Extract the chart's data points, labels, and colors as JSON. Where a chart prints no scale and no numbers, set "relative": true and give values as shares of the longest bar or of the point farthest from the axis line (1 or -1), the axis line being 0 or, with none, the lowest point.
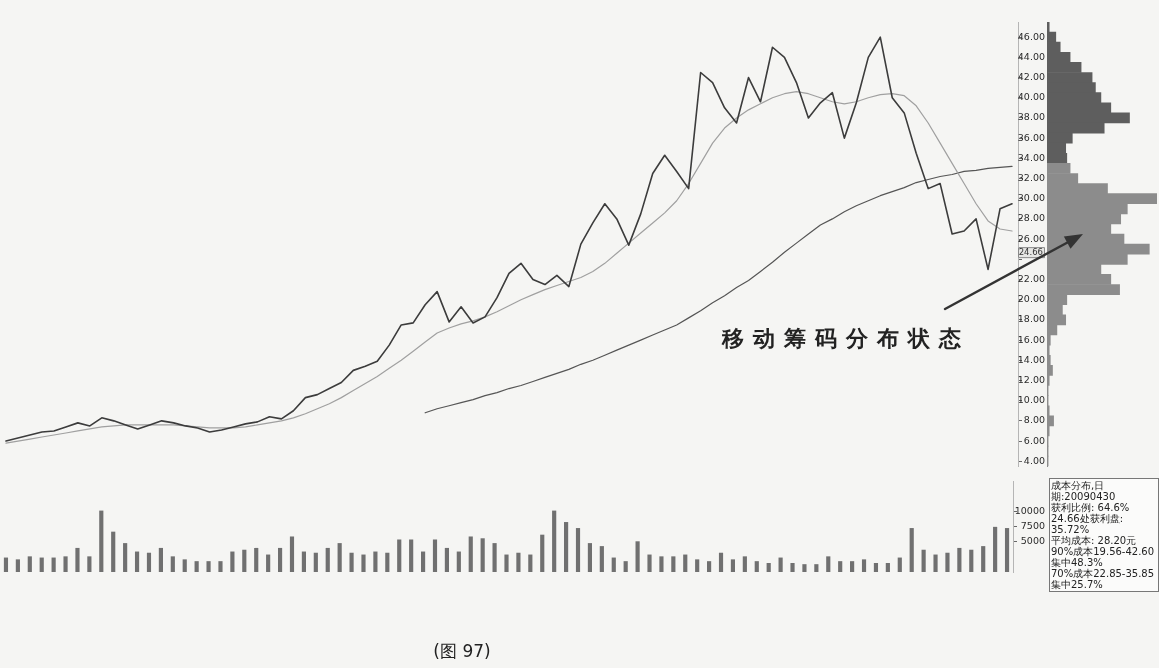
{
  "chart_data": [
    {
      "type": "line",
      "categories": [
        null,
        null,
        null,
        null,
        null,
        null,
        null,
        null,
        null,
        null,
        null,
        null,
        null,
        null,
        null,
        null,
        null,
        null,
        null,
        null,
        null,
        null,
        null,
        null,
        null,
        null,
        null,
        null,
        null,
        null,
        null,
        null,
        null,
        null,
        null,
        null,
        null,
        null,
        null,
        null,
        null,
        null,
        null,
        null,
        null,
        null,
        null,
        null,
        null,
        null,
        null,
        null,
        null,
        null,
        null,
        null,
        null,
        null,
        null,
        null,
        null,
        null,
        null,
        null,
        null,
        null,
        null,
        null,
        null,
        null,
        null,
        null,
        null,
        null,
        null,
        null,
        null,
        null,
        null,
        null,
        null,
        null,
        null,
        null,
        null
      ],
      "series": [
        {
          "color": "#3c3c3c",
          "values": [
            6.0,
            6.3,
            6.6,
            6.9,
            7.0,
            7.4,
            7.8,
            7.5,
            8.3,
            8.0,
            7.6,
            7.2,
            7.6,
            8.0,
            7.8,
            7.5,
            7.3,
            6.9,
            7.1,
            7.4,
            7.7,
            7.9,
            8.4,
            8.2,
            9.0,
            10.3,
            10.6,
            11.2,
            11.8,
            13.0,
            13.4,
            13.9,
            15.5,
            17.5,
            17.7,
            19.5,
            20.8,
            17.8,
            19.3,
            17.7,
            18.3,
            20.2,
            22.6,
            23.6,
            22.0,
            21.5,
            22.4,
            21.3,
            25.5,
            27.6,
            29.5,
            28.0,
            25.4,
            28.5,
            32.5,
            34.3,
            32.7,
            31.0,
            42.5,
            41.5,
            39.0,
            37.5,
            42.0,
            39.6,
            45.0,
            44.0,
            41.5,
            38.0,
            39.5,
            40.5,
            36.0,
            39.5,
            44.0,
            46.0,
            40.0,
            38.5,
            34.5,
            31.0,
            31.5,
            26.5,
            26.8,
            28.0,
            23.0,
            29.0,
            29.5
          ]
        },
        {
          "color": "#a0a0a0",
          "values": [
            5.8,
            6.0,
            6.2,
            6.4,
            6.6,
            6.8,
            7.0,
            7.2,
            7.4,
            7.5,
            7.6,
            7.6,
            7.6,
            7.6,
            7.6,
            7.5,
            7.4,
            7.3,
            7.3,
            7.3,
            7.4,
            7.6,
            7.8,
            8.0,
            8.3,
            8.7,
            9.2,
            9.7,
            10.3,
            11.0,
            11.7,
            12.4,
            13.2,
            14.0,
            14.9,
            15.8,
            16.7,
            17.2,
            17.6,
            17.9,
            18.3,
            18.8,
            19.4,
            20.0,
            20.5,
            21.0,
            21.4,
            21.8,
            22.2,
            22.8,
            23.6,
            24.6,
            25.6,
            26.6,
            27.6,
            28.6,
            29.8,
            31.5,
            33.5,
            35.5,
            37.0,
            38.0,
            38.8,
            39.4,
            40.0,
            40.4,
            40.6,
            40.4,
            40.0,
            39.6,
            39.4,
            39.6,
            40.0,
            40.3,
            40.4,
            40.2,
            39.2,
            37.5,
            35.5,
            33.5,
            31.5,
            29.5,
            27.8,
            27.0,
            26.8
          ]
        },
        {
          "color": "#555555",
          "values": [
            null,
            null,
            null,
            null,
            null,
            null,
            null,
            null,
            null,
            null,
            null,
            null,
            null,
            null,
            null,
            null,
            null,
            null,
            null,
            null,
            null,
            null,
            null,
            null,
            null,
            null,
            null,
            null,
            null,
            null,
            null,
            null,
            null,
            null,
            null,
            8.8,
            9.2,
            9.5,
            9.8,
            10.1,
            10.5,
            10.8,
            11.2,
            11.5,
            11.9,
            12.3,
            12.7,
            13.1,
            13.6,
            14.0,
            14.5,
            15.0,
            15.5,
            16.0,
            16.5,
            17.0,
            17.5,
            18.2,
            18.9,
            19.7,
            20.4,
            21.2,
            21.9,
            22.8,
            23.7,
            24.7,
            25.6,
            26.5,
            27.4,
            28.0,
            28.7,
            29.3,
            29.8,
            30.3,
            30.7,
            31.1,
            31.6,
            31.9,
            32.2,
            32.4,
            32.7,
            32.8,
            33.0,
            33.1,
            33.2
          ]
        }
      ],
      "ylim": [
        3.5,
        47.5
      ],
      "yticks": [
        {
          "value": 4,
          "label": "4.00"
        },
        {
          "value": 6,
          "label": "6.00"
        },
        {
          "value": 8,
          "label": "8.00"
        },
        {
          "value": 10,
          "label": "10.00"
        },
        {
          "value": 12,
          "label": "12.00"
        },
        {
          "value": 14,
          "label": "14.00"
        },
        {
          "value": 16,
          "label": "16.00"
        },
        {
          "value": 18,
          "label": "18.00"
        },
        {
          "value": 20,
          "label": "20.00"
        },
        {
          "value": 22,
          "label": "22.00"
        },
        {
          "value": 24,
          "label": null
        },
        {
          "value": 26,
          "label": "26.00"
        },
        {
          "value": 28,
          "label": "28.00"
        },
        {
          "value": 30,
          "label": "30.00"
        },
        {
          "value": 32,
          "label": "32.00"
        },
        {
          "value": 34,
          "label": "34.00"
        },
        {
          "value": 36,
          "label": "36.00"
        },
        {
          "value": 38,
          "label": "38.00"
        },
        {
          "value": 40,
          "label": "40.00"
        },
        {
          "value": 42,
          "label": "42.00"
        },
        {
          "value": 44,
          "label": "44.00"
        },
        {
          "value": 46,
          "label": "46.00"
        }
      ],
      "tick_labels": "y",
      "marker": "none",
      "line_style": "solid",
      "annotations": [
        "移动筹码分布状态",
        {
          "text": "24.66",
          "y": 24.66
        }
      ]
    },
    {
      "type": "bar",
      "orientation": "horizontal",
      "relative": true,
      "categories": [
        null,
        "46.00",
        null,
        "44.00",
        null,
        "42.00",
        null,
        "40.00",
        null,
        "38.00",
        null,
        "36.00",
        null,
        "34.00",
        null,
        "32.00",
        null,
        "30.00",
        null,
        "28.00",
        null,
        "26.00",
        null,
        null,
        null,
        "22.00",
        null,
        "20.00",
        null,
        "18.00",
        null,
        "16.00",
        null,
        "14.00",
        null,
        "12.00",
        null,
        "10.00",
        null,
        "8.00",
        null,
        "6.00",
        null,
        "4.00"
      ],
      "values": [
        0.02,
        0.08,
        0.12,
        0.21,
        0.31,
        0.41,
        0.44,
        0.49,
        0.58,
        0.75,
        0.52,
        0.23,
        0.17,
        0.18,
        0.21,
        0.28,
        0.55,
        1.0,
        0.73,
        0.67,
        0.58,
        0.7,
        0.93,
        0.73,
        0.49,
        0.58,
        0.66,
        0.18,
        0.14,
        0.17,
        0.09,
        0.03,
        0.02,
        0.03,
        0.05,
        0.02,
        0.01,
        0.01,
        0.02,
        0.06,
        0.02,
        0.01,
        0.01,
        0.01
      ],
      "colors": [
        "#5e5e5e",
        "#5e5e5e",
        "#5e5e5e",
        "#5e5e5e",
        "#5e5e5e",
        "#5e5e5e",
        "#5e5e5e",
        "#5e5e5e",
        "#5e5e5e",
        "#5e5e5e",
        "#5e5e5e",
        "#5e5e5e",
        "#5e5e5e",
        "#5e5e5e",
        "#8c8c8c",
        "#8c8c8c",
        "#8c8c8c",
        "#8c8c8c",
        "#8c8c8c",
        "#8c8c8c",
        "#8c8c8c",
        "#8c8c8c",
        "#8c8c8c",
        "#8c8c8c",
        "#8c8c8c",
        "#8c8c8c",
        "#8c8c8c",
        "#8c8c8c",
        "#8c8c8c",
        "#8c8c8c",
        "#8c8c8c",
        "#8c8c8c",
        "#8c8c8c",
        "#8c8c8c",
        "#8c8c8c",
        "#8c8c8c",
        "#8c8c8c",
        "#8c8c8c",
        "#8c8c8c",
        "#8c8c8c",
        "#8c8c8c",
        "#8c8c8c",
        "#8c8c8c",
        "#8c8c8c"
      ],
      "tick_labels": false,
      "annotations": [
        "成本分布,日期:20090430",
        "获利比例: 64.6%",
        "24.66处获利盘: 35.72%",
        "平均成本: 28.20元",
        "90%成本19.56-42.60集中48.3%",
        "70%成本22.85-35.85集中25.7%"
      ]
    },
    {
      "type": "bar",
      "categories": [
        null,
        null,
        null,
        null,
        null,
        null,
        null,
        null,
        null,
        null,
        null,
        null,
        null,
        null,
        null,
        null,
        null,
        null,
        null,
        null,
        null,
        null,
        null,
        null,
        null,
        null,
        null,
        null,
        null,
        null,
        null,
        null,
        null,
        null,
        null,
        null,
        null,
        null,
        null,
        null,
        null,
        null,
        null,
        null,
        null,
        null,
        null,
        null,
        null,
        null,
        null,
        null,
        null,
        null,
        null,
        null,
        null,
        null,
        null,
        null,
        null,
        null,
        null,
        null,
        null,
        null,
        null,
        null,
        null,
        null,
        null,
        null,
        null,
        null,
        null,
        null,
        null,
        null,
        null,
        null,
        null,
        null,
        null,
        null,
        null
      ],
      "values": [
        2400,
        2100,
        2600,
        2400,
        2400,
        2600,
        4000,
        2600,
        10200,
        6700,
        4800,
        3400,
        3200,
        4000,
        2600,
        2100,
        1800,
        1800,
        1800,
        3400,
        3700,
        4000,
        2900,
        4000,
        5900,
        3400,
        3200,
        4000,
        4800,
        3200,
        2900,
        3400,
        3200,
        5400,
        5400,
        3400,
        5400,
        4000,
        3400,
        5900,
        5600,
        4800,
        2900,
        3200,
        2900,
        6200,
        10200,
        8300,
        7300,
        4800,
        4300,
        2400,
        1800,
        5100,
        2900,
        2600,
        2600,
        2900,
        2100,
        1800,
        3200,
        2100,
        2600,
        1800,
        1500,
        2400,
        1500,
        1300,
        1300,
        2600,
        1800,
        1800,
        2100,
        1500,
        1500,
        2400,
        7300,
        3700,
        2900,
        3200,
        4000,
        3700,
        4300,
        7500,
        7300
      ],
      "color": "#707070",
      "ylim": [
        0,
        15000
      ],
      "yticks": [
        5000,
        7500,
        10000
      ],
      "tick_labels": "y",
      "annotations": [
        "(图 97)"
      ]
    }
  ]
}
